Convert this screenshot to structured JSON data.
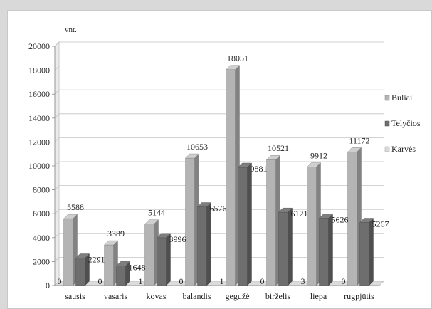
{
  "chart_data": {
    "type": "bar",
    "style": "3d-clustered-column",
    "unit_label": "vnt.",
    "categories": [
      "sausis",
      "vasaris",
      "kovas",
      "balandis",
      "gegužė",
      "birželis",
      "liepa",
      "rugpjūtis"
    ],
    "series": [
      {
        "name": "Buliai",
        "color": "#b4b4b4",
        "values": [
          5588,
          3389,
          5144,
          10653,
          18051,
          10521,
          9912,
          11172
        ]
      },
      {
        "name": "Telyčios",
        "color": "#6e6e6e",
        "values": [
          2291,
          1648,
          3996,
          6576,
          9881,
          6121,
          5626,
          5267
        ]
      },
      {
        "name": "Karvės",
        "color": "#d9d9d9",
        "values": [
          0,
          0,
          1,
          0,
          1,
          0,
          3,
          0
        ]
      }
    ],
    "ylim": [
      0,
      20000
    ],
    "y_ticks": [
      0,
      2000,
      4000,
      6000,
      8000,
      10000,
      12000,
      14000,
      16000,
      18000,
      20000
    ],
    "grid": true,
    "legend_position": "right"
  }
}
